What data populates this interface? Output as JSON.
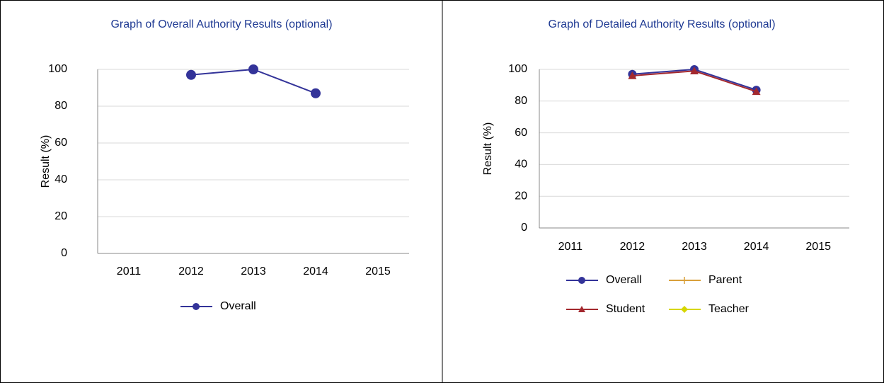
{
  "chart_data": [
    {
      "type": "line",
      "title": "Graph of Overall Authority Results (optional)",
      "y_label": "Result (%)",
      "categories": [
        "2011",
        "2012",
        "2013",
        "2014",
        "2015"
      ],
      "series": [
        {
          "name": "Overall",
          "color": "#333399",
          "marker": "circle",
          "values": [
            null,
            97,
            100,
            87,
            null
          ]
        }
      ],
      "ylim": [
        0,
        100
      ],
      "yticks": [
        0,
        20,
        40,
        60,
        80,
        100
      ],
      "grid": true,
      "legend": "bottom"
    },
    {
      "type": "line",
      "title": "Graph of Detailed Authority Results (optional)",
      "y_label": "Result (%)",
      "categories": [
        "2011",
        "2012",
        "2013",
        "2014",
        "2015"
      ],
      "series": [
        {
          "name": "Overall",
          "color": "#333399",
          "marker": "circle",
          "values": [
            null,
            97,
            100,
            87,
            null
          ]
        },
        {
          "name": "Parent",
          "color": "#D9A03A",
          "marker": "plus",
          "values": [
            null,
            null,
            null,
            null,
            null
          ]
        },
        {
          "name": "Student",
          "color": "#A3282E",
          "marker": "triangle",
          "values": [
            null,
            96,
            99,
            86,
            null
          ]
        },
        {
          "name": "Teacher",
          "color": "#D6D600",
          "marker": "diamond",
          "values": [
            null,
            null,
            null,
            null,
            null
          ]
        }
      ],
      "ylim": [
        0,
        100
      ],
      "yticks": [
        0,
        20,
        40,
        60,
        80,
        100
      ],
      "grid": true,
      "legend": "bottom"
    }
  ]
}
